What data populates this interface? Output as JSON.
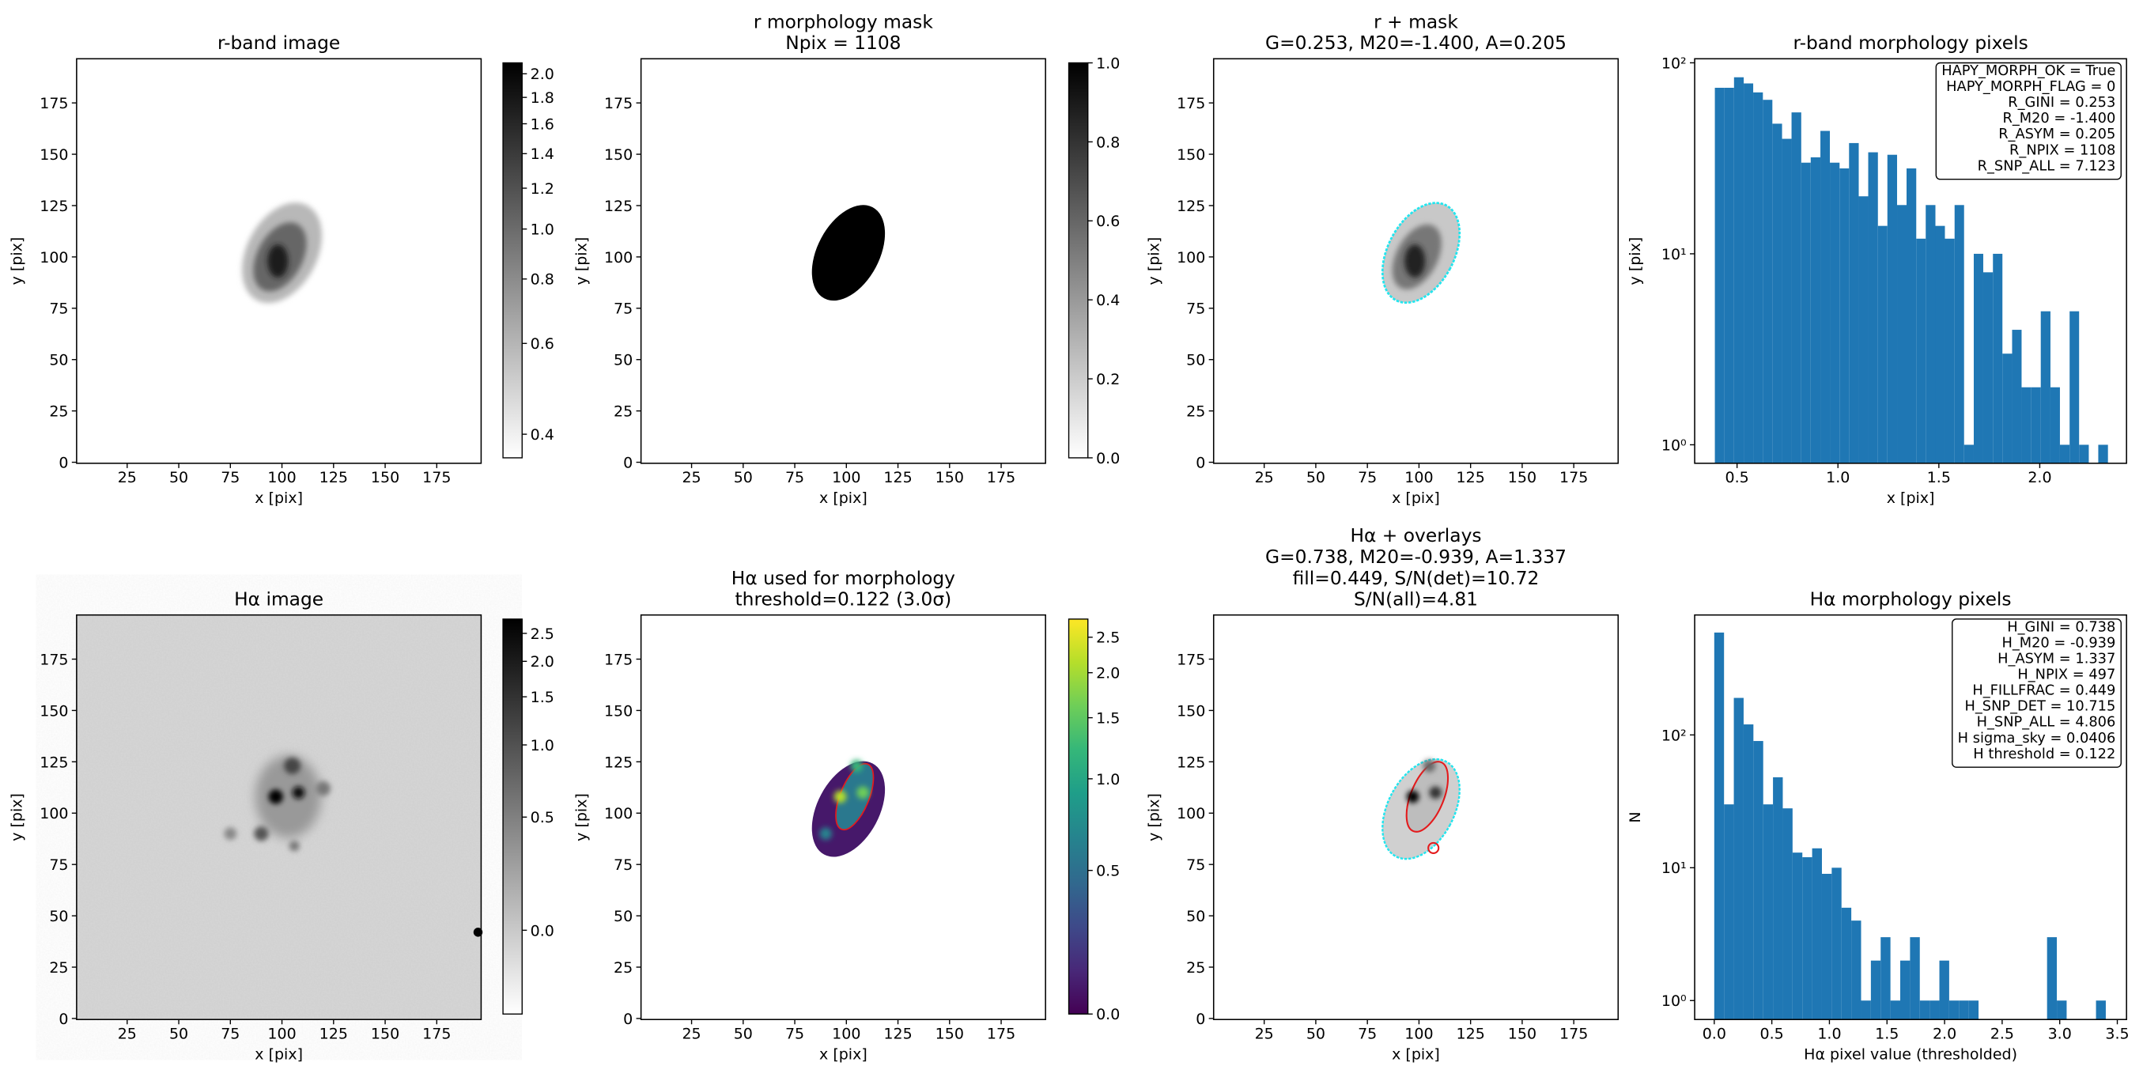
{
  "chart_data": [
    {
      "type": "image",
      "title": [
        "r-band image"
      ],
      "xlabel": "x [pix]",
      "ylabel": "y [pix]",
      "xlim": [
        0.5,
        196.5
      ],
      "ylim": [
        -0.5,
        196.5
      ],
      "xticks": [
        25,
        50,
        75,
        100,
        125,
        150,
        175
      ],
      "yticks": [
        0,
        25,
        50,
        75,
        100,
        125,
        150,
        175
      ],
      "colorbar": {
        "cmap": "gray_r",
        "clim": [
          0.36,
          2.1
        ],
        "scale": "log",
        "ticks": [
          0.4,
          0.6,
          0.8,
          {
            "value": 1,
            "label": "1.0"
          },
          1.2,
          1.4,
          1.6,
          1.8,
          {
            "value": 2,
            "label": "2.0"
          }
        ]
      }
    },
    {
      "type": "image",
      "title": [
        "r morphology mask",
        "Npix = 1108"
      ],
      "xlabel": "x [pix]",
      "ylabel": "y [pix]",
      "xlim": [
        0.5,
        196.5
      ],
      "ylim": [
        -0.5,
        196.5
      ],
      "xticks": [
        25,
        50,
        75,
        100,
        125,
        150,
        175
      ],
      "yticks": [
        0,
        25,
        50,
        75,
        100,
        125,
        150,
        175
      ],
      "colorbar": {
        "cmap": "gray_r",
        "clim": [
          0,
          1
        ],
        "scale": "linear",
        "ticks": [
          {
            "value": 0,
            "label": "0.0"
          },
          0.2,
          0.4,
          0.6,
          0.8,
          {
            "value": 1,
            "label": "1.0"
          }
        ]
      }
    },
    {
      "type": "image",
      "title": [
        "r + mask",
        "G=0.253, M20=-1.400, A=0.205"
      ],
      "xlabel": "x [pix]",
      "ylabel": "y [pix]",
      "xlim": [
        0.5,
        196.5
      ],
      "ylim": [
        -0.5,
        196.5
      ],
      "xticks": [
        25,
        50,
        75,
        100,
        125,
        150,
        175
      ],
      "yticks": [
        0,
        25,
        50,
        75,
        100,
        125,
        150,
        175
      ]
    },
    {
      "type": "histogram",
      "title": [
        "r-band morphology pixels"
      ],
      "xlabel": "x [pix]",
      "ylabel": "y [pix]",
      "color": "#1f77b4",
      "yscale": "log",
      "xlim": [
        0.29,
        2.43
      ],
      "ylim": [
        0.8,
        105
      ],
      "xticks": [
        0.5,
        {
          "value": 1,
          "label": "1.0"
        },
        1.5,
        {
          "value": 2,
          "label": "2.0"
        }
      ],
      "yticks": [
        {
          "value": 1,
          "label": "10⁰"
        },
        {
          "value": 10,
          "label": "10¹"
        },
        {
          "value": 100,
          "label": "10²"
        }
      ],
      "bins": [
        0.39,
        0.438,
        0.485,
        0.533,
        0.58,
        0.628,
        0.675,
        0.723,
        0.77,
        0.818,
        0.865,
        0.913,
        0.96,
        1.008,
        1.055,
        1.103,
        1.15,
        1.198,
        1.245,
        1.293,
        1.34,
        1.388,
        1.435,
        1.483,
        1.53,
        1.578,
        1.625,
        1.673,
        1.72,
        1.768,
        1.815,
        1.863,
        1.91,
        1.958,
        2.005,
        2.053,
        2.1,
        2.148,
        2.195,
        2.243,
        2.29,
        2.338
      ],
      "counts": [
        74,
        74,
        84,
        78,
        70,
        64,
        48,
        40,
        55,
        30,
        32,
        44,
        30,
        28,
        38,
        20,
        34,
        14,
        33,
        18,
        28,
        12,
        18,
        14,
        12,
        18,
        1,
        10,
        8,
        10,
        3,
        4,
        2,
        2,
        5,
        2,
        1,
        5,
        1,
        0,
        1
      ],
      "annotation": [
        "HAPY_MORPH_OK = True",
        "HAPY_MORPH_FLAG = 0",
        "R_GINI = 0.253",
        "R_M20 = -1.400",
        "R_ASYM = 0.205",
        "R_NPIX = 1108",
        "R_SNP_ALL = 7.123"
      ]
    },
    {
      "type": "image",
      "title": [
        "Hα image"
      ],
      "xlabel": "x [pix]",
      "ylabel": "y [pix]",
      "xlim": [
        0.5,
        196.5
      ],
      "ylim": [
        -0.5,
        196.5
      ],
      "xticks": [
        25,
        50,
        75,
        100,
        125,
        150,
        175
      ],
      "yticks": [
        0,
        25,
        50,
        75,
        100,
        125,
        150,
        175
      ],
      "colorbar": {
        "cmap": "gray_r",
        "clim": [
          -0.35,
          2.8
        ],
        "scale": "asinh",
        "ticks": [
          {
            "value": 0,
            "label": "0.0"
          },
          0.5,
          {
            "value": 1,
            "label": "1.0"
          },
          1.5,
          {
            "value": 2,
            "label": "2.0"
          },
          2.5
        ]
      }
    },
    {
      "type": "image",
      "title": [
        "Hα used for morphology",
        "threshold=0.122 (3.0σ)"
      ],
      "xlabel": "x [pix]",
      "ylabel": "y [pix]",
      "xlim": [
        0.5,
        196.5
      ],
      "ylim": [
        -0.5,
        196.5
      ],
      "xticks": [
        25,
        50,
        75,
        100,
        125,
        150,
        175
      ],
      "yticks": [
        0,
        25,
        50,
        75,
        100,
        125,
        150,
        175
      ],
      "colorbar": {
        "cmap": "viridis",
        "clim": [
          0,
          2.8
        ],
        "scale": "asinh",
        "ticks": [
          {
            "value": 0,
            "label": "0.0"
          },
          0.5,
          {
            "value": 1,
            "label": "1.0"
          },
          1.5,
          {
            "value": 2,
            "label": "2.0"
          },
          2.5
        ]
      }
    },
    {
      "type": "image",
      "title": [
        "Hα + overlays",
        "G=0.738, M20=-0.939, A=1.337",
        "fill=0.449, S/N(det)=10.72",
        "S/N(all)=4.81"
      ],
      "xlabel": "x [pix]",
      "ylabel": "y [pix]",
      "xlim": [
        0.5,
        196.5
      ],
      "ylim": [
        -0.5,
        196.5
      ],
      "xticks": [
        25,
        50,
        75,
        100,
        125,
        150,
        175
      ],
      "yticks": [
        0,
        25,
        50,
        75,
        100,
        125,
        150,
        175
      ]
    },
    {
      "type": "histogram",
      "title": [
        "Hα morphology pixels"
      ],
      "xlabel": "Hα pixel value (thresholded)",
      "ylabel": "N",
      "color": "#1f77b4",
      "yscale": "log",
      "xlim": [
        -0.17,
        3.58
      ],
      "ylim": [
        0.72,
        800
      ],
      "xticks": [
        {
          "value": 0,
          "label": "0.0"
        },
        0.5,
        {
          "value": 1,
          "label": "1.0"
        },
        1.5,
        {
          "value": 2,
          "label": "2.0"
        },
        2.5,
        {
          "value": 3,
          "label": "3.0"
        },
        3.5
      ],
      "yticks": [
        {
          "value": 1,
          "label": "10⁰"
        },
        {
          "value": 10,
          "label": "10¹"
        },
        {
          "value": 100,
          "label": "10²"
        }
      ],
      "bins": [
        0,
        0.085,
        0.17,
        0.255,
        0.34,
        0.425,
        0.51,
        0.595,
        0.68,
        0.765,
        0.85,
        0.935,
        1.02,
        1.105,
        1.19,
        1.275,
        1.36,
        1.445,
        1.53,
        1.615,
        1.7,
        1.785,
        1.87,
        1.955,
        2.04,
        2.125,
        2.21,
        2.295,
        2.38,
        2.465,
        2.55,
        2.635,
        2.72,
        2.805,
        2.89,
        2.975,
        3.06,
        3.145,
        3.23,
        3.315,
        3.4
      ],
      "counts": [
        590,
        30,
        190,
        120,
        90,
        30,
        48,
        28,
        13,
        12,
        14,
        9,
        10,
        5,
        4,
        1,
        2,
        3,
        1,
        2,
        3,
        1,
        1,
        2,
        1,
        1,
        1,
        0,
        0,
        0,
        0,
        0,
        0,
        0,
        3,
        1,
        0,
        0,
        0,
        1
      ],
      "annotation": [
        "H_GINI = 0.738",
        "H_M20 = -0.939",
        "H_ASYM = 1.337",
        "H_NPIX = 497",
        "H_FILLFRAC = 0.449",
        "H_SNP_DET = 10.715",
        "H_SNP_ALL = 4.806",
        "H sigma_sky = 0.0406",
        "H threshold = 0.122"
      ]
    }
  ]
}
